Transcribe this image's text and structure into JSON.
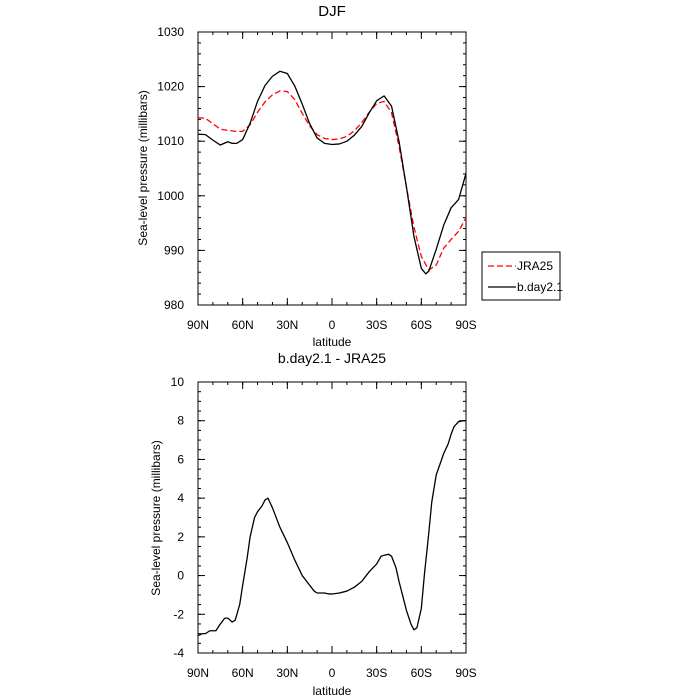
{
  "chart_data": [
    {
      "type": "line",
      "title": "DJF",
      "xlabel": "latitude",
      "ylabel": "Sea-level pressure (millibars)",
      "xlim": [
        90,
        -90
      ],
      "ylim": [
        980,
        1030
      ],
      "xticks": [
        90,
        60,
        30,
        0,
        -30,
        -60,
        -90
      ],
      "xtick_labels": [
        "90N",
        "60N",
        "30N",
        "0",
        "30S",
        "60S",
        "90S"
      ],
      "yticks": [
        980,
        990,
        1000,
        1010,
        1020,
        1030
      ],
      "ytick_labels": [
        "980",
        "990",
        "1000",
        "1010",
        "1020",
        "1030"
      ],
      "legend_position": "right-bottom-outside",
      "series": [
        {
          "name": "JRA25",
          "color": "#ff0000",
          "dash": "dashed",
          "points": [
            [
              90,
              1014.3
            ],
            [
              85,
              1014.2
            ],
            [
              80,
              1013.2
            ],
            [
              75,
              1012.2
            ],
            [
              70,
              1012.0
            ],
            [
              65,
              1011.8
            ],
            [
              60,
              1011.8
            ],
            [
              55,
              1013.0
            ],
            [
              50,
              1015.3
            ],
            [
              45,
              1017.2
            ],
            [
              40,
              1018.5
            ],
            [
              35,
              1019.2
            ],
            [
              30,
              1019.1
            ],
            [
              25,
              1017.6
            ],
            [
              20,
              1015.1
            ],
            [
              15,
              1012.8
            ],
            [
              10,
              1011.2
            ],
            [
              5,
              1010.5
            ],
            [
              0,
              1010.3
            ],
            [
              -5,
              1010.4
            ],
            [
              -10,
              1010.9
            ],
            [
              -15,
              1011.9
            ],
            [
              -20,
              1013.4
            ],
            [
              -25,
              1015.3
            ],
            [
              -30,
              1016.9
            ],
            [
              -35,
              1017.3
            ],
            [
              -40,
              1015.2
            ],
            [
              -45,
              1009.1
            ],
            [
              -50,
              1001.6
            ],
            [
              -55,
              994.3
            ],
            [
              -60,
              988.9
            ],
            [
              -65,
              986.4
            ],
            [
              -70,
              987.3
            ],
            [
              -75,
              990.4
            ],
            [
              -80,
              992.0
            ],
            [
              -85,
              993.5
            ],
            [
              -90,
              996.0
            ]
          ]
        },
        {
          "name": "b.day2.1",
          "color": "#000000",
          "dash": "solid",
          "points": [
            [
              90,
              1011.3
            ],
            [
              85,
              1011.2
            ],
            [
              80,
              1010.2
            ],
            [
              75,
              1009.3
            ],
            [
              70,
              1009.9
            ],
            [
              67,
              1009.6
            ],
            [
              64,
              1009.6
            ],
            [
              60,
              1010.3
            ],
            [
              55,
              1013.3
            ],
            [
              50,
              1017.3
            ],
            [
              45,
              1020.2
            ],
            [
              40,
              1021.9
            ],
            [
              35,
              1022.8
            ],
            [
              30,
              1022.4
            ],
            [
              25,
              1020.1
            ],
            [
              20,
              1016.8
            ],
            [
              15,
              1013.2
            ],
            [
              10,
              1010.6
            ],
            [
              5,
              1009.6
            ],
            [
              0,
              1009.4
            ],
            [
              -5,
              1009.5
            ],
            [
              -10,
              1010.0
            ],
            [
              -15,
              1011.1
            ],
            [
              -20,
              1012.7
            ],
            [
              -25,
              1015.2
            ],
            [
              -30,
              1017.4
            ],
            [
              -35,
              1018.3
            ],
            [
              -40,
              1016.4
            ],
            [
              -45,
              1010.0
            ],
            [
              -50,
              1001.6
            ],
            [
              -55,
              992.6
            ],
            [
              -60,
              986.7
            ],
            [
              -63,
              985.7
            ],
            [
              -65,
              986.2
            ],
            [
              -70,
              990.2
            ],
            [
              -75,
              994.6
            ],
            [
              -80,
              997.8
            ],
            [
              -85,
              999.3
            ],
            [
              -90,
              1004.1
            ]
          ]
        }
      ]
    },
    {
      "type": "line",
      "title": "b.day2.1 - JRA25",
      "xlabel": "latitude",
      "ylabel": "Sea-level pressure (millibars)",
      "xlim": [
        90,
        -90
      ],
      "ylim": [
        -4,
        10
      ],
      "xticks": [
        90,
        60,
        30,
        0,
        -30,
        -60,
        -90
      ],
      "xtick_labels": [
        "90N",
        "60N",
        "30N",
        "0",
        "30S",
        "60S",
        "90S"
      ],
      "yticks": [
        -4,
        -2,
        0,
        2,
        4,
        6,
        8,
        10
      ],
      "ytick_labels": [
        "-4",
        "-2",
        "0",
        "2",
        "4",
        "6",
        "8",
        "10"
      ],
      "series": [
        {
          "color": "#000000",
          "dash": "solid",
          "points": [
            [
              90,
              -3.1
            ],
            [
              87,
              -3.0
            ],
            [
              85,
              -3.0
            ],
            [
              82,
              -2.85
            ],
            [
              78,
              -2.85
            ],
            [
              75,
              -2.5
            ],
            [
              72,
              -2.2
            ],
            [
              70,
              -2.2
            ],
            [
              67,
              -2.4
            ],
            [
              65,
              -2.3
            ],
            [
              62,
              -1.5
            ],
            [
              60,
              -0.5
            ],
            [
              57,
              0.9
            ],
            [
              55,
              2.0
            ],
            [
              52,
              3.0
            ],
            [
              50,
              3.3
            ],
            [
              47,
              3.6
            ],
            [
              45,
              3.9
            ],
            [
              43,
              4.0
            ],
            [
              40,
              3.5
            ],
            [
              35,
              2.5
            ],
            [
              30,
              1.7
            ],
            [
              25,
              0.8
            ],
            [
              20,
              0.0
            ],
            [
              15,
              -0.5
            ],
            [
              12,
              -0.8
            ],
            [
              10,
              -0.9
            ],
            [
              5,
              -0.9
            ],
            [
              2,
              -0.95
            ],
            [
              0,
              -0.95
            ],
            [
              -5,
              -0.9
            ],
            [
              -10,
              -0.8
            ],
            [
              -15,
              -0.6
            ],
            [
              -20,
              -0.3
            ],
            [
              -25,
              0.2
            ],
            [
              -30,
              0.6
            ],
            [
              -33,
              1.0
            ],
            [
              -35,
              1.05
            ],
            [
              -38,
              1.1
            ],
            [
              -40,
              1.0
            ],
            [
              -43,
              0.4
            ],
            [
              -45,
              -0.3
            ],
            [
              -48,
              -1.2
            ],
            [
              -50,
              -1.8
            ],
            [
              -53,
              -2.5
            ],
            [
              -55,
              -2.8
            ],
            [
              -57,
              -2.7
            ],
            [
              -60,
              -1.7
            ],
            [
              -62,
              0.0
            ],
            [
              -65,
              2.2
            ],
            [
              -67,
              3.8
            ],
            [
              -70,
              5.2
            ],
            [
              -75,
              6.3
            ],
            [
              -78,
              6.8
            ],
            [
              -80,
              7.3
            ],
            [
              -82,
              7.7
            ],
            [
              -85,
              7.95
            ],
            [
              -88,
              8.0
            ],
            [
              -90,
              8.0
            ]
          ]
        }
      ]
    }
  ]
}
